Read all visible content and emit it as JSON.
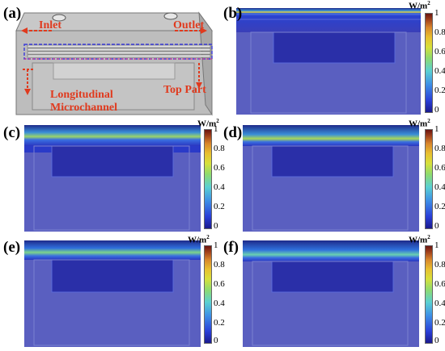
{
  "panel_labels": {
    "a": "(a)",
    "b": "(b)",
    "c": "(c)",
    "d": "(d)",
    "e": "(e)",
    "f": "(f)"
  },
  "schematic": {
    "inlet": "Inlet",
    "outlet": "Outlet",
    "top_part": "Top Part",
    "channel_line1": "Longitudinal",
    "channel_line2": "Microchannel"
  },
  "colorbar": {
    "unit_base": "W/m",
    "unit_exp": "2",
    "ticks": [
      "1",
      "0.8",
      "0.6",
      "0.4",
      "0.2",
      "0"
    ]
  },
  "colors": {
    "callout": "#e03a1e",
    "field_low": "#4a55c8",
    "field_high": "#e8d23a"
  }
}
